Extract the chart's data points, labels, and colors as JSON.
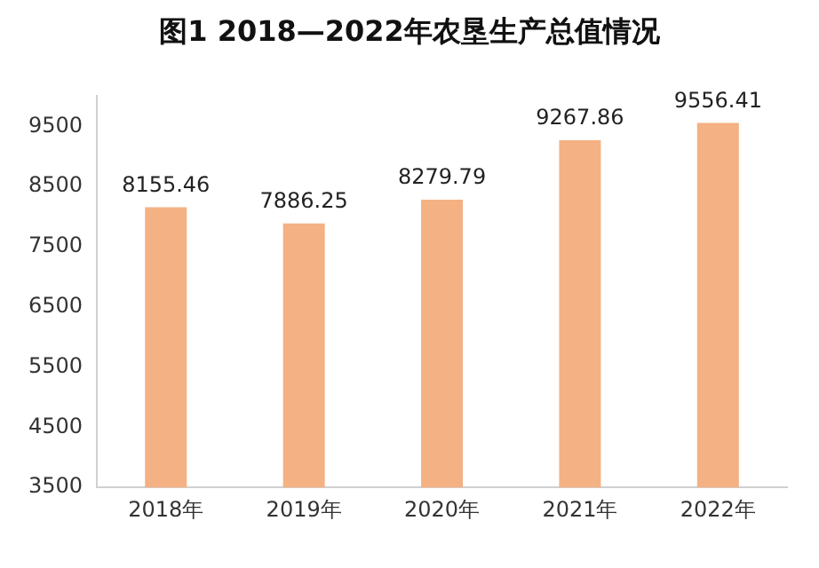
{
  "chart_data": {
    "type": "bar",
    "title": "图1 2018—2022年农垦生产总值情况",
    "categories": [
      "2018年",
      "2019年",
      "2020年",
      "2021年",
      "2022年"
    ],
    "values": [
      8155.46,
      7886.25,
      8279.79,
      9267.86,
      9556.41
    ],
    "color": "#f4b183",
    "ylim": [
      3500,
      10000
    ],
    "yticks": [
      3500,
      4500,
      5500,
      6500,
      7500,
      8500,
      9500
    ],
    "grid": false,
    "data_labels": true,
    "legend": false
  }
}
